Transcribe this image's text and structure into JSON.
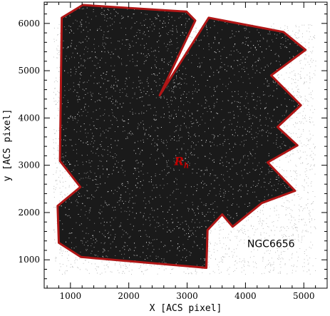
{
  "chart_data": {
    "type": "scatter",
    "title": "",
    "xlabel": "X [ACS pixel]",
    "ylabel": "y [ACS pixel]",
    "xlim": [
      550,
      5400
    ],
    "ylim": [
      400,
      6450
    ],
    "xticks": [
      1000,
      2000,
      3000,
      4000,
      5000
    ],
    "yticks": [
      1000,
      2000,
      3000,
      4000,
      5000,
      6000
    ],
    "series": [
      {
        "name": "",
        "color": "#000000",
        "description_points": "dense field of stars inside outlined region"
      },
      {
        "name": "",
        "color": "#bdbdbd",
        "description_points": "sparser stars outside outlined region"
      }
    ],
    "outline": {
      "color": "#b01616",
      "vertices": [
        [
          1210,
          6390
        ],
        [
          2990,
          6250
        ],
        [
          3140,
          6060
        ],
        [
          2530,
          4480
        ],
        [
          3370,
          6120
        ],
        [
          4650,
          5820
        ],
        [
          5030,
          5440
        ],
        [
          4440,
          4900
        ],
        [
          4950,
          4270
        ],
        [
          4550,
          3810
        ],
        [
          4890,
          3420
        ],
        [
          4380,
          3060
        ],
        [
          4850,
          2460
        ],
        [
          4280,
          2200
        ],
        [
          3780,
          1700
        ],
        [
          3600,
          1960
        ],
        [
          3350,
          1630
        ],
        [
          3330,
          830
        ],
        [
          1180,
          1060
        ],
        [
          800,
          1360
        ],
        [
          780,
          2140
        ],
        [
          1170,
          2540
        ],
        [
          820,
          3090
        ],
        [
          850,
          6120
        ]
      ]
    },
    "annotations": [
      {
        "text": "NGC6656",
        "x": 4030,
        "y": 1270
      },
      {
        "text": "R",
        "sub": "h",
        "x": 2780,
        "y": 3000
      }
    ]
  }
}
